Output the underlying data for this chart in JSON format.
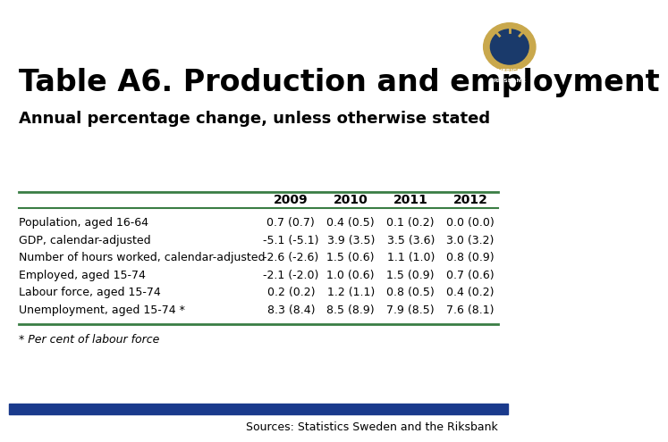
{
  "title": "Table A6. Production and employment",
  "subtitle": "Annual percentage change, unless otherwise stated",
  "columns": [
    "",
    "2009",
    "2010",
    "2011",
    "2012"
  ],
  "rows": [
    [
      "Population, aged 16-64",
      "0.7 (0.7)",
      "0.4 (0.5)",
      "0.1 (0.2)",
      "0.0 (0.0)"
    ],
    [
      "GDP, calendar-adjusted",
      "-5.1 (-5.1)",
      "3.9 (3.5)",
      "3.5 (3.6)",
      "3.0 (3.2)"
    ],
    [
      "Number of hours worked, calendar-adjusted",
      "-2.6 (-2.6)",
      "1.5 (0.6)",
      "1.1 (1.0)",
      "0.8 (0.9)"
    ],
    [
      "Employed, aged 15-74",
      "-2.1 (-2.0)",
      "1.0 (0.6)",
      "1.5 (0.9)",
      "0.7 (0.6)"
    ],
    [
      "Labour force, aged 15-74",
      "0.2 (0.2)",
      "1.2 (1.1)",
      "0.8 (0.5)",
      "0.4 (0.2)"
    ],
    [
      "Unemployment, aged 15-74 *",
      "8.3 (8.4)",
      "8.5 (8.9)",
      "7.9 (8.5)",
      "7.6 (8.1)"
    ]
  ],
  "footnote": "* Per cent of labour force",
  "source": "Sources: Statistics Sweden and the Riksbank",
  "bg_color": "#ffffff",
  "title_color": "#000000",
  "subtitle_color": "#000000",
  "header_color": "#000000",
  "row_color": "#000000",
  "table_line_color": "#3a7d44",
  "bottom_bar_color": "#1a3a8c",
  "title_fontsize": 24,
  "subtitle_fontsize": 13,
  "header_fontsize": 10,
  "row_fontsize": 9,
  "footnote_fontsize": 9,
  "source_fontsize": 9
}
